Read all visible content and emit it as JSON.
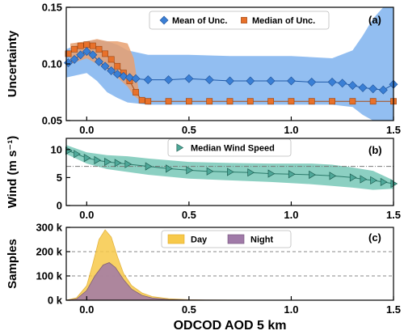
{
  "chart_data": [
    {
      "panel_label": "(a)",
      "type": "line",
      "ylabel": "Uncertainty",
      "xlim": [
        -0.1,
        1.5
      ],
      "ylim": [
        0.05,
        0.15
      ],
      "x_ticks": [
        0.0,
        0.5,
        1.0,
        1.5
      ],
      "x_tick_labels": [
        "0.0",
        "0.5",
        "1.0",
        "1.5"
      ],
      "y_ticks": [
        0.05,
        0.1,
        0.15
      ],
      "y_tick_labels": [
        "0.05",
        "0.10",
        "0.15"
      ],
      "legend_position": "top-center",
      "colors": {
        "mean": "#3a7fd5",
        "mean_band": "#7fb3ee",
        "median": "#e8712a",
        "median_band": "#e8a070"
      },
      "series": [
        {
          "name": "Mean of Unc.",
          "marker": "diamond",
          "x": [
            -0.09,
            -0.06,
            -0.03,
            0.0,
            0.03,
            0.06,
            0.09,
            0.12,
            0.15,
            0.18,
            0.21,
            0.24,
            0.3,
            0.4,
            0.5,
            0.6,
            0.7,
            0.8,
            0.9,
            1.0,
            1.1,
            1.2,
            1.25,
            1.3,
            1.35,
            1.4,
            1.45,
            1.5
          ],
          "values": [
            0.101,
            0.104,
            0.108,
            0.111,
            0.108,
            0.102,
            0.098,
            0.094,
            0.091,
            0.089,
            0.088,
            0.087,
            0.086,
            0.086,
            0.087,
            0.086,
            0.085,
            0.085,
            0.085,
            0.085,
            0.084,
            0.084,
            0.083,
            0.081,
            0.079,
            0.078,
            0.077,
            0.082
          ]
        },
        {
          "name": "Median of Unc.",
          "marker": "square",
          "x": [
            -0.09,
            -0.06,
            -0.03,
            0.0,
            0.03,
            0.06,
            0.09,
            0.12,
            0.15,
            0.18,
            0.21,
            0.24,
            0.27,
            0.3,
            0.4,
            0.5,
            0.6,
            0.7,
            0.8,
            0.9,
            1.0,
            1.1,
            1.2,
            1.3,
            1.4,
            1.5
          ],
          "values": [
            0.109,
            0.113,
            0.116,
            0.117,
            0.116,
            0.113,
            0.109,
            0.104,
            0.098,
            0.092,
            0.085,
            0.075,
            0.068,
            0.067,
            0.067,
            0.067,
            0.067,
            0.067,
            0.067,
            0.067,
            0.067,
            0.067,
            0.067,
            0.067,
            0.067,
            0.067
          ]
        }
      ],
      "mean_band": {
        "x": [
          -0.1,
          0.0,
          0.05,
          0.1,
          0.15,
          0.2,
          0.3,
          0.5,
          0.7,
          1.0,
          1.2,
          1.3,
          1.35,
          1.4,
          1.45,
          1.5
        ],
        "lower": [
          0.088,
          0.092,
          0.085,
          0.075,
          0.07,
          0.066,
          0.064,
          0.064,
          0.064,
          0.064,
          0.064,
          0.062,
          0.055,
          0.05,
          0.05,
          0.05
        ],
        "upper": [
          0.113,
          0.12,
          0.121,
          0.12,
          0.117,
          0.112,
          0.108,
          0.108,
          0.107,
          0.107,
          0.105,
          0.112,
          0.125,
          0.14,
          0.15,
          0.15
        ]
      },
      "median_band": {
        "x": [
          -0.08,
          0.0,
          0.05,
          0.1,
          0.15,
          0.2,
          0.23,
          0.26
        ],
        "lower": [
          0.1,
          0.105,
          0.1,
          0.095,
          0.088,
          0.08,
          0.072,
          0.068
        ],
        "upper": [
          0.118,
          0.12,
          0.122,
          0.12,
          0.12,
          0.118,
          0.105,
          0.07
        ]
      }
    },
    {
      "panel_label": "(b)",
      "type": "line",
      "ylabel": "Wind (m s⁻¹)",
      "xlim": [
        -0.1,
        1.5
      ],
      "ylim": [
        0,
        12
      ],
      "x_ticks": [
        0.0,
        0.5,
        1.0,
        1.5
      ],
      "x_tick_labels": [
        "0.0",
        "0.5",
        "1.0",
        "1.5"
      ],
      "y_ticks": [
        0,
        5,
        10
      ],
      "y_tick_labels": [
        "0",
        "5",
        "10"
      ],
      "reference_line": 7,
      "legend_position": "top-center",
      "colors": {
        "line": "#2a7a6a",
        "band": "#6fc4b3"
      },
      "series": [
        {
          "name": "Median Wind Speed",
          "marker": "triangle-right",
          "x": [
            -0.09,
            -0.05,
            0.0,
            0.05,
            0.1,
            0.15,
            0.2,
            0.3,
            0.4,
            0.5,
            0.6,
            0.7,
            0.8,
            0.9,
            1.0,
            1.1,
            1.2,
            1.3,
            1.35,
            1.4,
            1.45,
            1.5
          ],
          "values": [
            9.8,
            9.2,
            8.5,
            8.1,
            7.8,
            7.6,
            7.4,
            7.0,
            6.6,
            6.3,
            6.1,
            6.0,
            5.9,
            5.7,
            5.6,
            5.5,
            5.3,
            5.0,
            4.7,
            4.5,
            4.2,
            3.9
          ]
        }
      ],
      "band": {
        "x": [
          -0.1,
          0.0,
          0.1,
          0.2,
          0.3,
          0.5,
          0.7,
          0.9,
          1.1,
          1.2,
          1.3,
          1.4,
          1.5
        ],
        "lower": [
          9.2,
          7.5,
          6.5,
          6.0,
          5.5,
          4.8,
          4.5,
          4.2,
          3.8,
          3.5,
          3.2,
          2.8,
          3.0
        ],
        "upper": [
          10.8,
          9.5,
          9.0,
          8.8,
          8.4,
          7.8,
          7.6,
          7.5,
          7.5,
          7.3,
          6.8,
          6.2,
          4.5
        ]
      }
    },
    {
      "panel_label": "(c)",
      "type": "area",
      "ylabel": "Samples",
      "xlabel": "ODCOD AOD 5 km",
      "xlim": [
        -0.1,
        1.5
      ],
      "ylim": [
        0,
        300000
      ],
      "x_ticks": [
        0.0,
        0.5,
        1.0,
        1.5
      ],
      "x_tick_labels": [
        "0.0",
        "0.5",
        "1.0",
        "1.5"
      ],
      "y_ticks": [
        0,
        100000,
        200000,
        300000
      ],
      "y_tick_labels": [
        "0 k",
        "100 k",
        "200 k",
        "300 k"
      ],
      "dashed_grid": [
        100000,
        200000
      ],
      "legend_position": "top-center",
      "colors": {
        "Day": "#f7c94a",
        "Night": "#a07aa8"
      },
      "series": [
        {
          "name": "Day",
          "x": [
            -0.1,
            -0.05,
            0.0,
            0.03,
            0.06,
            0.09,
            0.12,
            0.15,
            0.18,
            0.22,
            0.27,
            0.32,
            0.4,
            0.5,
            0.6,
            0.8,
            1.0,
            1.5
          ],
          "values": [
            0,
            10000,
            60000,
            150000,
            250000,
            290000,
            260000,
            180000,
            110000,
            60000,
            30000,
            15000,
            6000,
            2000,
            800,
            200,
            50,
            0
          ]
        },
        {
          "name": "Night",
          "x": [
            -0.1,
            -0.05,
            0.0,
            0.04,
            0.08,
            0.11,
            0.14,
            0.18,
            0.22,
            0.27,
            0.32,
            0.4,
            0.5,
            0.7,
            1.0,
            1.5
          ],
          "values": [
            0,
            5000,
            40000,
            100000,
            145000,
            155000,
            135000,
            85000,
            45000,
            20000,
            9000,
            3000,
            1000,
            200,
            50,
            0
          ]
        }
      ]
    }
  ]
}
